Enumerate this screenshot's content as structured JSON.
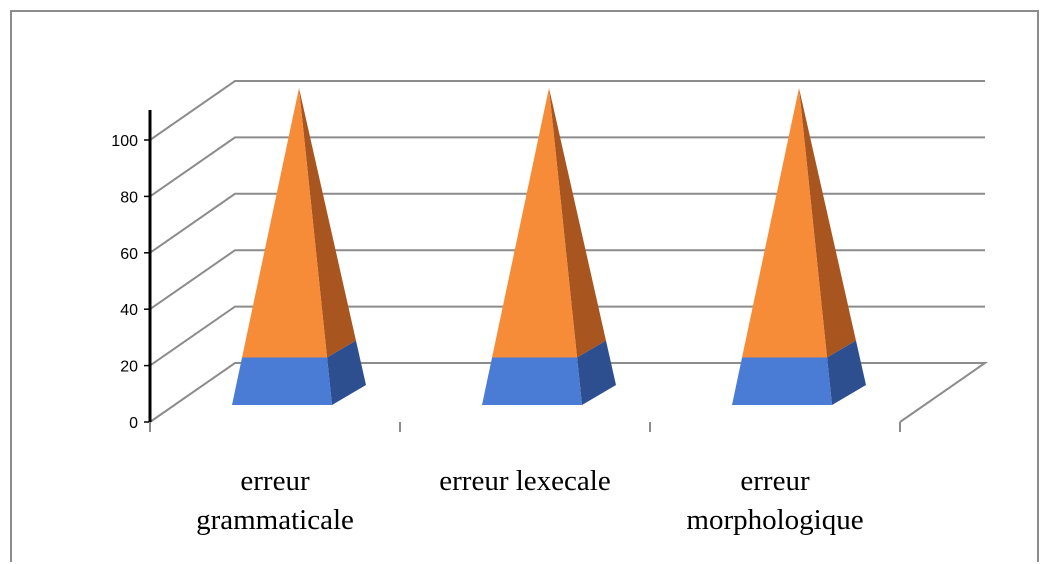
{
  "chart_data": {
    "type": "bar",
    "style": "3d-pyramid-stacked",
    "categories": [
      "erreur grammaticale",
      "erreur lexecale",
      "erreur morphologique"
    ],
    "category_lines": [
      [
        "erreur",
        "grammaticale"
      ],
      [
        "erreur lexecale"
      ],
      [
        "erreur",
        "morphologique"
      ]
    ],
    "series": [
      {
        "values": [
          15,
          15,
          15
        ],
        "color": "#4A7BD5",
        "side_color": "#2E4F8F"
      },
      {
        "values": [
          85,
          85,
          85
        ],
        "color": "#F68B38",
        "side_color": "#A9551F"
      }
    ],
    "ylim": [
      0,
      100
    ],
    "yticks": [
      "0",
      "20",
      "40",
      "60",
      "80",
      "100"
    ],
    "grid": true,
    "legend": "none",
    "title": "",
    "xlabel": "",
    "ylabel": ""
  }
}
